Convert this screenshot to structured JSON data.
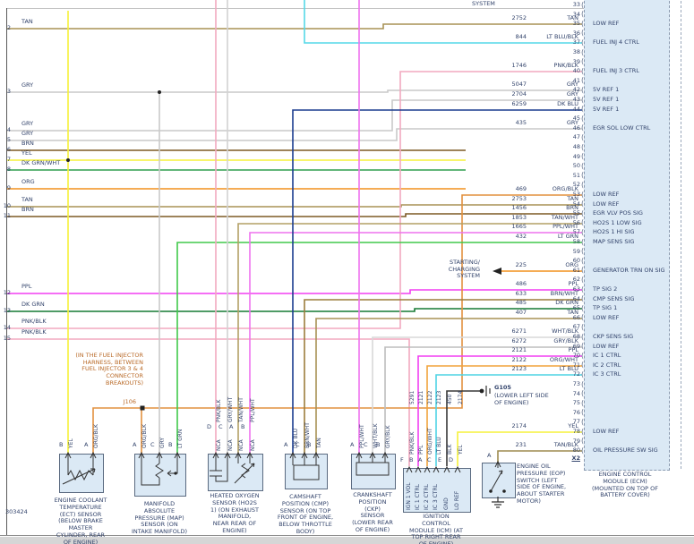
{
  "page": {
    "offpage_top": "SYSTEM",
    "doc_number": "303424"
  },
  "wire_colors": {
    "TAN": "#a89255",
    "GRY": "#c9c9c9",
    "BRN": "#7d5a24",
    "YEL": "#f6f23a",
    "DK GRN/WHT": "#2f9e4d",
    "ORG": "#f2911d",
    "ORG/BLK": "#e2913f",
    "PPL": "#f23ff2",
    "DK GRN": "#157a33",
    "PNK/BLK": "#f2a9bf",
    "LT BLU/BLK": "#55d8e8",
    "DK BLU": "#1c3d8f",
    "TAN/WHT": "#b3a065",
    "PPL/WHT": "#ee72ee",
    "LT GRN": "#41c94b",
    "BRN/WHT": "#9c7d3c",
    "WHT/BLK": "#d8d8d8",
    "GRY/BLK": "#bdbdbd",
    "GRY/WHT": "#d2d2d2",
    "ORG/WHT": "#f2a43c",
    "LT BLU": "#4fd4e4",
    "TAN/BLK": "#9e8c50",
    "BLK": "#383838"
  },
  "left_rows": [
    {
      "n": "2",
      "color": "TAN"
    },
    {
      "n": "3",
      "color": "GRY"
    },
    {
      "n": "4",
      "color": "GRY"
    },
    {
      "n": "5",
      "color": "GRY"
    },
    {
      "n": "6",
      "color": "BRN"
    },
    {
      "n": "7",
      "color": "YEL"
    },
    {
      "n": "8",
      "color": "DK GRN/WHT"
    },
    {
      "n": "9",
      "color": "ORG"
    },
    {
      "n": "10",
      "color": "TAN"
    },
    {
      "n": "11",
      "color": "BRN"
    },
    {
      "n": "12",
      "color": "PPL"
    },
    {
      "n": "13",
      "color": "DK GRN"
    },
    {
      "n": "14",
      "color": "PNK/BLK"
    },
    {
      "n": "15",
      "color": "PNK/BLK"
    }
  ],
  "splice_note": {
    "text": "(IN THE FUEL INJECTOR HARNESS, BETWEEN FUEL INJECTOR 3 & 4 CONNECTOR BREAKOUTS)",
    "id": "J106"
  },
  "ground": {
    "id": "G105",
    "location": "(LOWER LEFT SIDE OF ENGINE)"
  },
  "offpage_left": {
    "text": "STARTING/ CHARGING SYSTEM"
  },
  "ecm": {
    "label": "ENGINE CONTROL MODULE (ECM) (MOUNTED ON TOP OF BATTERY COVER)",
    "connector": "X2",
    "pins": [
      {
        "n": "33"
      },
      {
        "n": "34"
      },
      {
        "n": "35",
        "circuit": "2752",
        "color": "TAN",
        "label": "LOW REF"
      },
      {
        "n": "36"
      },
      {
        "n": "37",
        "circuit": "844",
        "color": "LT BLU/BLK",
        "label": "FUEL INJ 4 CTRL"
      },
      {
        "n": "38"
      },
      {
        "n": "39"
      },
      {
        "n": "40",
        "circuit": "1746",
        "color": "PNK/BLK",
        "label": "FUEL INJ 3 CTRL"
      },
      {
        "n": "41"
      },
      {
        "n": "42",
        "circuit": "5047",
        "color": "GRY",
        "label": "5V REF 1"
      },
      {
        "n": "43",
        "circuit": "2704",
        "color": "GRY",
        "label": "5V REF 1"
      },
      {
        "n": "44",
        "circuit": "6259",
        "color": "DK BLU",
        "label": "5V REF 1"
      },
      {
        "n": "45"
      },
      {
        "n": "46",
        "circuit": "435",
        "color": "GRY",
        "label": "EGR SOL LOW CTRL"
      },
      {
        "n": "47"
      },
      {
        "n": "48"
      },
      {
        "n": "49"
      },
      {
        "n": "50"
      },
      {
        "n": "51"
      },
      {
        "n": "52"
      },
      {
        "n": "53",
        "circuit": "469",
        "color": "ORG/BLK",
        "label": "LOW REF"
      },
      {
        "n": "54",
        "circuit": "2753",
        "color": "TAN",
        "label": "LOW REF"
      },
      {
        "n": "55",
        "circuit": "1456",
        "color": "BRN",
        "label": "EGR VLV POS SIG"
      },
      {
        "n": "56",
        "circuit": "1853",
        "color": "TAN/WHT",
        "label": "HO2S 1 LOW SIG"
      },
      {
        "n": "57",
        "circuit": "1665",
        "color": "PPL/WHT",
        "label": "HO2S 1 HI SIG"
      },
      {
        "n": "58",
        "circuit": "432",
        "color": "LT GRN",
        "label": "MAP SENS SIG"
      },
      {
        "n": "59"
      },
      {
        "n": "60"
      },
      {
        "n": "61",
        "circuit": "225",
        "color": "ORG",
        "label": "GENERATOR TRN ON SIG"
      },
      {
        "n": "62"
      },
      {
        "n": "63",
        "circuit": "486",
        "color": "PPL",
        "label": "TP SIG 2"
      },
      {
        "n": "64",
        "circuit": "633",
        "color": "BRN/WHT",
        "label": "CMP SENS SIG"
      },
      {
        "n": "65",
        "circuit": "485",
        "color": "DK GRN",
        "label": "TP SIG 1"
      },
      {
        "n": "66",
        "circuit": "407",
        "color": "TAN",
        "label": "LOW REF"
      },
      {
        "n": "67"
      },
      {
        "n": "68",
        "circuit": "6271",
        "color": "WHT/BLK",
        "label": "CKP SENS SIG"
      },
      {
        "n": "69",
        "circuit": "6272",
        "color": "GRY/BLK",
        "label": "LOW REF"
      },
      {
        "n": "70",
        "circuit": "2121",
        "color": "PPL",
        "label": "IC 1 CTRL"
      },
      {
        "n": "71",
        "circuit": "2122",
        "color": "ORG/WHT",
        "label": "IC 2 CTRL"
      },
      {
        "n": "72",
        "circuit": "2123",
        "color": "LT BLU",
        "label": "IC 3 CTRL"
      },
      {
        "n": "73"
      },
      {
        "n": "74"
      },
      {
        "n": "75"
      },
      {
        "n": "76"
      },
      {
        "n": "77"
      },
      {
        "n": "78",
        "circuit": "2174",
        "color": "YEL",
        "label": "LOW REF"
      },
      {
        "n": "79"
      },
      {
        "n": "80",
        "circuit": "231",
        "color": "TAN/BLK",
        "label": "OIL PRESSURE SW SIG"
      }
    ]
  },
  "sensors": [
    {
      "name": "ect",
      "label": "ENGINE COOLANT TEMPERATURE (ECT) SENSOR (BELOW BRAKE MASTER CYLINDER, REAR OF ENGINE)",
      "pins": [
        {
          "letter": "B",
          "color": "YEL"
        },
        {
          "letter": "A",
          "color": "ORG/BLK"
        }
      ]
    },
    {
      "name": "map",
      "label": "MANIFOLD ABSOLUTE PRESSURE (MAP) SENSOR (ON INTAKE MANIFOLD)",
      "pins": [
        {
          "letter": "A",
          "color": "ORG/BLK"
        },
        {
          "letter": "C",
          "color": "GRY"
        },
        {
          "letter": "B",
          "color": "LT GRN"
        }
      ]
    },
    {
      "name": "ho2s",
      "label": "HEATED OXYGEN SENSOR (HO2S 1) (ON EXHAUST MANIFOLD, NEAR REAR OF ENGINE)",
      "pins": [
        {
          "letter": "D",
          "color": "PNK/BLK",
          "tag": "NCA"
        },
        {
          "letter": "C",
          "color": "GRY/WHT",
          "tag": "NCA"
        },
        {
          "letter": "A",
          "color": "TAN/WHT",
          "tag": "NCA"
        },
        {
          "letter": "B",
          "color": "PPL/WHT",
          "tag": "NCA"
        }
      ]
    },
    {
      "name": "cmp",
      "label": "CAMSHAFT POSITION (CMP) SENSOR (ON TOP FRONT OF ENGINE, BELOW THROTTLE BODY)",
      "pins": [
        {
          "letter": "A",
          "color": "DK BLU"
        },
        {
          "letter": "C",
          "color": "BRN/WHT"
        },
        {
          "letter": "B",
          "color": "TAN"
        }
      ]
    },
    {
      "name": "ckp",
      "label": "CRANKSHAFT POSITION (CKP) SENSOR (LOWER REAR OF ENGINE)",
      "pins": [
        {
          "letter": "A",
          "color": "PPL/WHT"
        },
        {
          "letter": "C",
          "color": "WHT/BLK"
        },
        {
          "letter": "B",
          "color": "GRY/BLK"
        }
      ]
    },
    {
      "name": "icm",
      "label": "IGNITION CONTROL MODULE (ICM) (AT TOP RIGHT REAR OF ENGINE)",
      "pins": [
        {
          "letter": "F",
          "color": "PNK/BLK",
          "circuit": "5291",
          "function": "IGN 1 VOL"
        },
        {
          "letter": "B",
          "color": "PPL",
          "circuit": "2121",
          "function": "IC 1 CTRL"
        },
        {
          "letter": "A",
          "color": "ORG/WHT",
          "circuit": "2122",
          "function": "IC 2 CTRL"
        },
        {
          "letter": "C",
          "color": "LT BLU",
          "circuit": "2123",
          "function": "IC 3 CTRL"
        },
        {
          "letter": "E",
          "color": "BLK",
          "circuit": "450",
          "function": "GND"
        },
        {
          "letter": "D",
          "color": "YEL",
          "circuit": "2174",
          "function": "LO REF"
        }
      ]
    },
    {
      "name": "eop",
      "label": "ENGINE OIL PRESSURE (EOP) SWITCH (LEFT SIDE OF ENGINE, ABOUT STARTER MOTOR)",
      "pins": [
        {
          "letter": "A",
          "color": "TAN/BLK"
        }
      ]
    }
  ]
}
